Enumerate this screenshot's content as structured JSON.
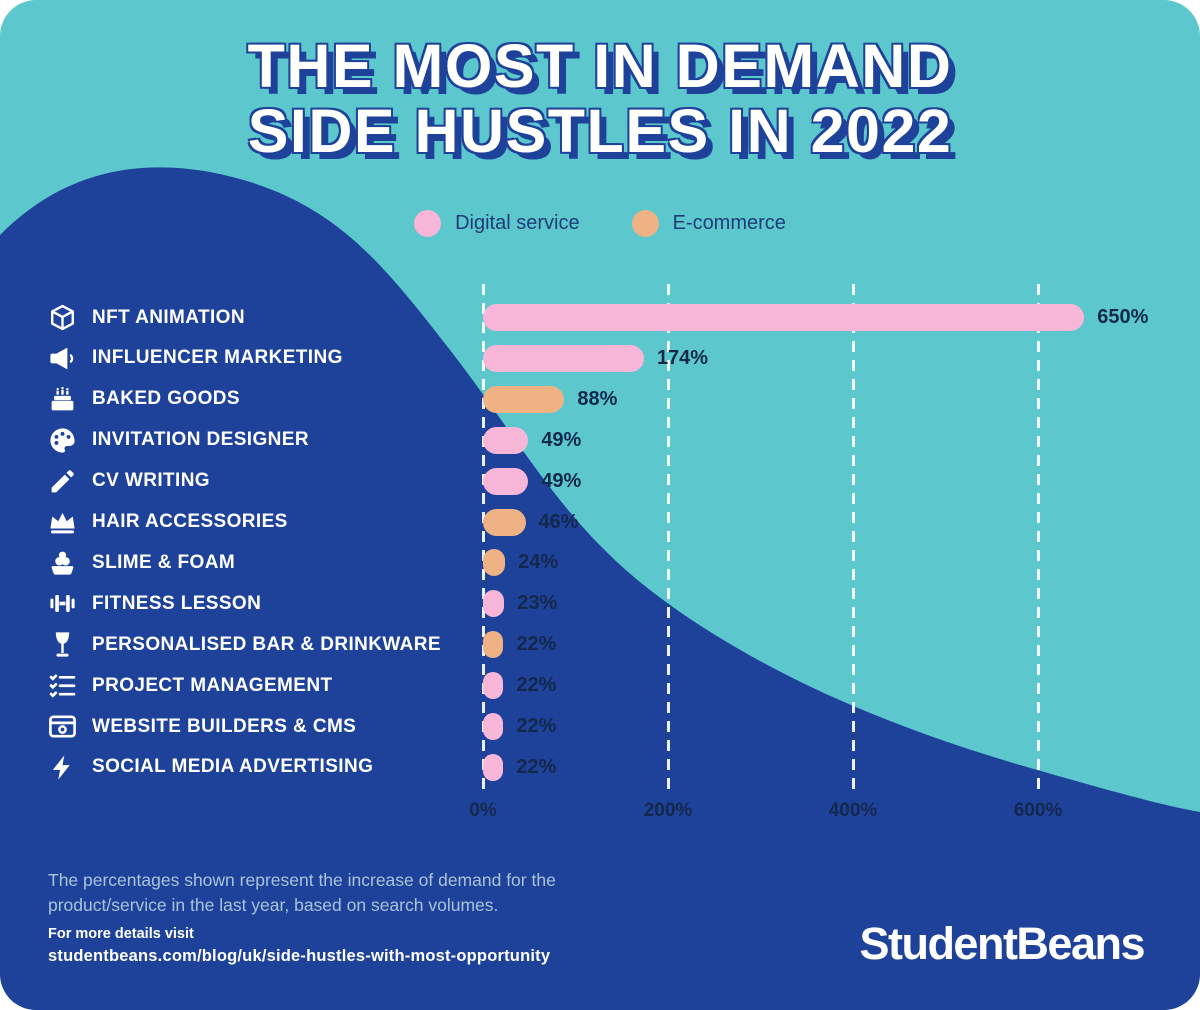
{
  "title": {
    "line1": "THE MOST IN DEMAND",
    "line2": "SIDE HUSTLES IN 2022"
  },
  "legend": {
    "items": [
      {
        "label": "Digital service",
        "key": "digital"
      },
      {
        "label": "E-commerce",
        "key": "ecommerce"
      }
    ]
  },
  "colors": {
    "background": "#5CC8CE",
    "wave": "#1E429A",
    "digital": "#F8B7D9",
    "ecommerce": "#EFB285",
    "value_text": "#14284E",
    "label_text": "#FFFFFF",
    "muted_text": "#A9C3DA"
  },
  "chart_data": {
    "type": "bar",
    "orientation": "horizontal",
    "title": "The Most In Demand Side Hustles in 2022",
    "xlabel": "",
    "ylabel": "",
    "xlim": [
      0,
      650
    ],
    "grid": true,
    "legend_position": "top",
    "x_ticks": [
      {
        "value": 0,
        "label": "0%"
      },
      {
        "value": 200,
        "label": "200%"
      },
      {
        "value": 400,
        "label": "400%"
      },
      {
        "value": 600,
        "label": "600%"
      }
    ],
    "rows": [
      {
        "label": "NFT ANIMATION",
        "value": 650,
        "display": "650%",
        "series": "Digital service",
        "segment": "digital",
        "icon": "cube-icon"
      },
      {
        "label": "INFLUENCER MARKETING",
        "value": 174,
        "display": "174%",
        "series": "Digital service",
        "segment": "digital",
        "icon": "megaphone-icon"
      },
      {
        "label": "BAKED GOODS",
        "value": 88,
        "display": "88%",
        "series": "E-commerce",
        "segment": "ecommerce",
        "icon": "cake-icon"
      },
      {
        "label": "INVITATION DESIGNER",
        "value": 49,
        "display": "49%",
        "series": "Digital service",
        "segment": "digital",
        "icon": "palette-icon"
      },
      {
        "label": "CV WRITING",
        "value": 49,
        "display": "49%",
        "series": "Digital service",
        "segment": "digital",
        "icon": "pencil-icon"
      },
      {
        "label": "HAIR ACCESSORIES",
        "value": 46,
        "display": "46%",
        "series": "E-commerce",
        "segment": "ecommerce",
        "icon": "crown-icon"
      },
      {
        "label": "SLIME & FOAM",
        "value": 24,
        "display": "24%",
        "series": "E-commerce",
        "segment": "ecommerce",
        "icon": "slime-icon"
      },
      {
        "label": "FITNESS LESSON",
        "value": 23,
        "display": "23%",
        "series": "Digital service",
        "segment": "digital",
        "icon": "dumbbell-icon"
      },
      {
        "label": "PERSONALISED BAR & DRINKWARE",
        "value": 22,
        "display": "22%",
        "series": "E-commerce",
        "segment": "ecommerce",
        "icon": "wine-glass-icon"
      },
      {
        "label": "PROJECT MANAGEMENT",
        "value": 22,
        "display": "22%",
        "series": "Digital service",
        "segment": "digital",
        "icon": "checklist-icon"
      },
      {
        "label": "WEBSITE BUILDERS & CMS",
        "value": 22,
        "display": "22%",
        "series": "Digital service",
        "segment": "digital",
        "icon": "browser-icon"
      },
      {
        "label": "SOCIAL MEDIA ADVERTISING",
        "value": 22,
        "display": "22%",
        "series": "Digital service",
        "segment": "digital",
        "icon": "lightning-icon"
      }
    ]
  },
  "footnote": {
    "line1": "The percentages shown represent the increase of demand for the",
    "line2": "product/service in the last year, based on search volumes."
  },
  "details": {
    "label": "For more details visit",
    "url": "studentbeans.com/blog/uk/side-hustles-with-most-opportunity"
  },
  "logo": "StudentBeans"
}
